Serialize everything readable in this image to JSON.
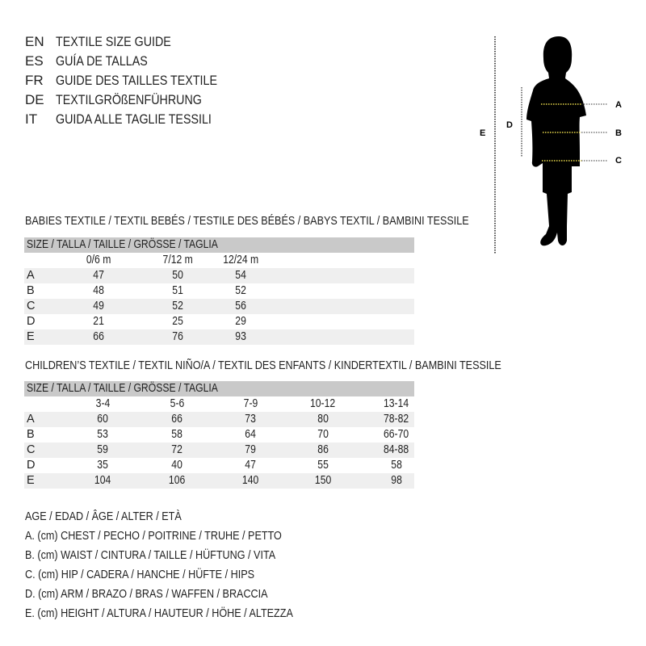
{
  "titles": [
    {
      "code": "EN",
      "text": "TEXTILE SIZE GUIDE"
    },
    {
      "code": "ES",
      "text": "GUÍA DE TALLAS"
    },
    {
      "code": "FR",
      "text": "GUIDE DES TAILLES TEXTILE"
    },
    {
      "code": "DE",
      "text": "TEXTILGRÖßENFÜHRUNG"
    },
    {
      "code": "IT",
      "text": "GUIDA ALLE TAGLIE TESSILI"
    }
  ],
  "figure": {
    "labels": {
      "a": "A",
      "b": "B",
      "c": "C",
      "d": "D",
      "e": "E"
    },
    "accent": "#e8d84a"
  },
  "babies": {
    "title": "BABIES TEXTILE / TEXTIL BEBÉS / TESTILE DES BÉBÉS / BABYS TEXTIL / BAMBINI TESSILE",
    "header": "SIZE / TALLA / TAILLE / GRÖSSE / TAGLIA",
    "columns": [
      "0/6 m",
      "7/12 m",
      "12/24 m"
    ],
    "rows": [
      {
        "label": "A",
        "values": [
          "47",
          "50",
          "54"
        ]
      },
      {
        "label": "B",
        "values": [
          "48",
          "51",
          "52"
        ]
      },
      {
        "label": "C",
        "values": [
          "49",
          "52",
          "56"
        ]
      },
      {
        "label": "D",
        "values": [
          "21",
          "25",
          "29"
        ]
      },
      {
        "label": "E",
        "values": [
          "66",
          "76",
          "93"
        ]
      }
    ]
  },
  "children": {
    "title": "CHILDREN’S TEXTILE / TEXTIL NIÑO/A / TEXTIL DES ENFANTS / KINDERTEXTIL / BAMBINI TESSILE",
    "header": "SIZE / TALLA / TAILLE / GRÖSSE / TAGLIA",
    "columns": [
      "3-4",
      "5-6",
      "7-9",
      "10-12",
      "13-14"
    ],
    "rows": [
      {
        "label": "A",
        "values": [
          "60",
          "66",
          "73",
          "80",
          "78-82"
        ]
      },
      {
        "label": "B",
        "values": [
          "53",
          "58",
          "64",
          "70",
          "66-70"
        ]
      },
      {
        "label": "C",
        "values": [
          "59",
          "72",
          "79",
          "86",
          "84-88"
        ]
      },
      {
        "label": "D",
        "values": [
          "35",
          "40",
          "47",
          "55",
          "58"
        ]
      },
      {
        "label": "E",
        "values": [
          "104",
          "106",
          "140",
          "150",
          "98"
        ]
      }
    ]
  },
  "legend": [
    "AGE / EDAD / ÂGE / ALTER / ETÀ",
    "A. (cm) CHEST / PECHO / POITRINE / TRUHE / PETTO",
    "B. (cm) WAIST / CINTURA / TAILLE / HÜFTUNG / VITA",
    "C. (cm) HIP / CADERA / HANCHE / HÜFTE / HIPS",
    "D. (cm) ARM / BRAZO / BRAS / WAFFEN / BRACCIA",
    "E. (cm) HEIGHT / ALTURA / HAUTEUR / HÖHE / ALTEZZA"
  ]
}
